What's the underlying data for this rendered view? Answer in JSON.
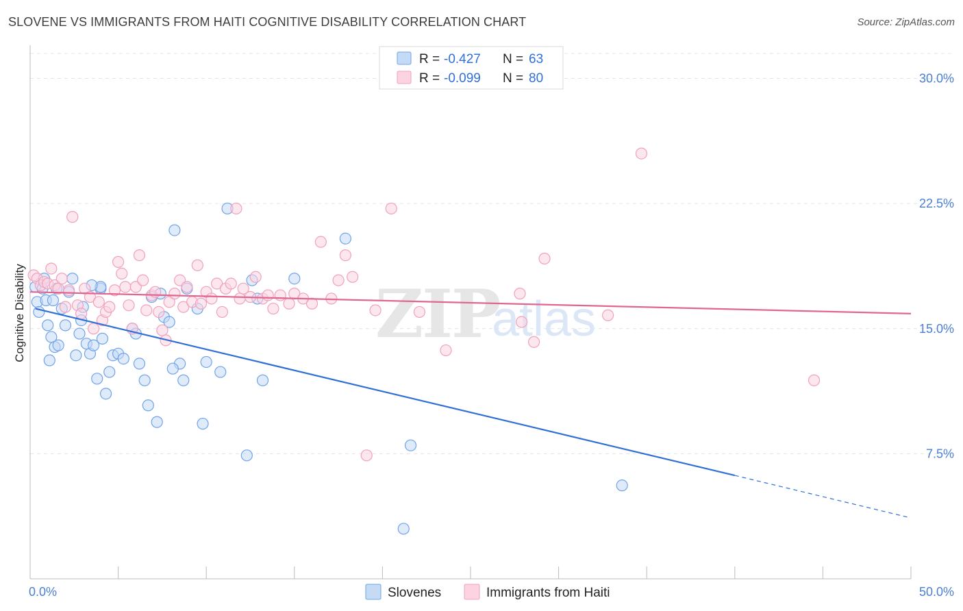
{
  "chart_data": {
    "type": "scatter",
    "title": "SLOVENE VS IMMIGRANTS FROM HAITI COGNITIVE DISABILITY CORRELATION CHART",
    "source": "Source: ZipAtlas.com",
    "ylabel": "Cognitive Disability",
    "xlim": [
      0,
      50
    ],
    "ylim": [
      0,
      31.5
    ],
    "x_tick_labels": [
      "0.0%",
      "50.0%"
    ],
    "y_ticks": [
      7.5,
      15.0,
      22.5,
      30.0
    ],
    "y_tick_labels": [
      "7.5%",
      "15.0%",
      "22.5%",
      "30.0%"
    ],
    "watermark": {
      "zip": "ZIP",
      "atlas": "atlas"
    },
    "legend": [
      {
        "r_label": "R =",
        "r_value": "-0.427",
        "n_label": "N =",
        "n_value": "63"
      },
      {
        "r_label": "R =",
        "r_value": "-0.099",
        "n_label": "N =",
        "n_value": "80"
      }
    ],
    "series": [
      {
        "name": "Slovenes",
        "color": "#6fa3e8",
        "fill": "#c5daf5",
        "line_color": "#2f6fd6",
        "trend": {
          "x_start": 0.3,
          "y_start": 16.2,
          "x_solid_end": 40.0,
          "y_solid_end": 6.2,
          "x_dash_end": 49.8,
          "y_dash_end": 3.7
        },
        "points": [
          [
            0.3,
            17.5
          ],
          [
            0.4,
            16.6
          ],
          [
            0.5,
            16.0
          ],
          [
            0.7,
            17.4
          ],
          [
            0.8,
            18.0
          ],
          [
            0.9,
            16.7
          ],
          [
            1.0,
            15.2
          ],
          [
            1.1,
            13.1
          ],
          [
            1.2,
            14.5
          ],
          [
            1.3,
            16.7
          ],
          [
            1.4,
            13.9
          ],
          [
            1.6,
            14.0
          ],
          [
            1.8,
            16.2
          ],
          [
            2.0,
            15.2
          ],
          [
            2.2,
            17.2
          ],
          [
            2.4,
            18.0
          ],
          [
            2.6,
            13.4
          ],
          [
            2.8,
            14.7
          ],
          [
            3.0,
            16.3
          ],
          [
            3.2,
            14.1
          ],
          [
            3.4,
            13.5
          ],
          [
            3.6,
            14.0
          ],
          [
            3.8,
            12.0
          ],
          [
            4.0,
            17.4
          ],
          [
            4.1,
            14.4
          ],
          [
            4.3,
            11.1
          ],
          [
            4.5,
            12.4
          ],
          [
            4.7,
            13.4
          ],
          [
            5.0,
            13.5
          ],
          [
            5.3,
            13.2
          ],
          [
            5.8,
            15.0
          ],
          [
            6.0,
            14.7
          ],
          [
            6.2,
            12.9
          ],
          [
            6.5,
            11.9
          ],
          [
            6.7,
            10.4
          ],
          [
            6.9,
            16.9
          ],
          [
            7.2,
            9.4
          ],
          [
            7.4,
            17.1
          ],
          [
            7.6,
            15.7
          ],
          [
            7.9,
            15.4
          ],
          [
            8.2,
            20.9
          ],
          [
            8.5,
            12.9
          ],
          [
            8.7,
            11.9
          ],
          [
            8.1,
            12.6
          ],
          [
            8.9,
            17.4
          ],
          [
            9.5,
            16.2
          ],
          [
            9.8,
            9.3
          ],
          [
            10.0,
            13.0
          ],
          [
            10.8,
            12.4
          ],
          [
            11.2,
            22.2
          ],
          [
            12.3,
            7.4
          ],
          [
            12.6,
            17.9
          ],
          [
            12.9,
            16.8
          ],
          [
            13.2,
            11.9
          ],
          [
            15.0,
            18.0
          ],
          [
            17.9,
            20.4
          ],
          [
            21.2,
            3.0
          ],
          [
            21.6,
            8.0
          ],
          [
            33.6,
            5.6
          ],
          [
            4.0,
            17.5
          ],
          [
            1.5,
            17.4
          ],
          [
            2.9,
            15.5
          ],
          [
            3.5,
            17.6
          ]
        ]
      },
      {
        "name": "Immigrants from Haiti",
        "color": "#f0a0bc",
        "fill": "#fbd3e1",
        "line_color": "#e0668f",
        "trend": {
          "x_start": 0.0,
          "y_start": 17.2,
          "x_end": 50.0,
          "y_end": 15.9
        },
        "points": [
          [
            0.2,
            18.2
          ],
          [
            0.4,
            18.0
          ],
          [
            0.6,
            17.6
          ],
          [
            0.8,
            17.8
          ],
          [
            1.0,
            17.7
          ],
          [
            1.2,
            18.6
          ],
          [
            1.4,
            17.6
          ],
          [
            1.6,
            17.4
          ],
          [
            1.8,
            18.0
          ],
          [
            2.0,
            16.3
          ],
          [
            2.2,
            17.3
          ],
          [
            2.4,
            21.7
          ],
          [
            2.7,
            16.4
          ],
          [
            2.9,
            15.9
          ],
          [
            3.1,
            17.4
          ],
          [
            3.4,
            16.9
          ],
          [
            3.6,
            15.0
          ],
          [
            3.9,
            16.6
          ],
          [
            4.1,
            15.5
          ],
          [
            4.3,
            16.0
          ],
          [
            4.5,
            16.3
          ],
          [
            4.8,
            17.3
          ],
          [
            5.0,
            19.0
          ],
          [
            5.2,
            18.3
          ],
          [
            5.4,
            17.5
          ],
          [
            5.6,
            16.4
          ],
          [
            5.8,
            15.0
          ],
          [
            6.0,
            17.5
          ],
          [
            6.2,
            19.4
          ],
          [
            6.4,
            17.9
          ],
          [
            6.6,
            16.1
          ],
          [
            6.9,
            17.0
          ],
          [
            7.1,
            17.2
          ],
          [
            7.3,
            16.0
          ],
          [
            7.5,
            14.9
          ],
          [
            7.7,
            14.3
          ],
          [
            7.9,
            16.6
          ],
          [
            8.2,
            17.1
          ],
          [
            8.5,
            17.9
          ],
          [
            8.7,
            16.3
          ],
          [
            8.9,
            17.5
          ],
          [
            9.2,
            16.6
          ],
          [
            9.5,
            18.8
          ],
          [
            9.7,
            16.5
          ],
          [
            10.0,
            17.2
          ],
          [
            10.3,
            16.8
          ],
          [
            10.6,
            17.7
          ],
          [
            10.9,
            16.0
          ],
          [
            11.1,
            17.4
          ],
          [
            11.4,
            17.7
          ],
          [
            11.7,
            22.2
          ],
          [
            11.9,
            16.8
          ],
          [
            12.1,
            17.4
          ],
          [
            12.5,
            16.9
          ],
          [
            12.8,
            18.1
          ],
          [
            13.2,
            16.8
          ],
          [
            13.5,
            17.0
          ],
          [
            13.8,
            16.2
          ],
          [
            14.2,
            17.0
          ],
          [
            14.7,
            16.5
          ],
          [
            15.0,
            17.1
          ],
          [
            15.5,
            16.8
          ],
          [
            16.0,
            16.5
          ],
          [
            16.5,
            20.2
          ],
          [
            17.1,
            16.8
          ],
          [
            17.5,
            17.9
          ],
          [
            17.9,
            19.4
          ],
          [
            18.3,
            18.1
          ],
          [
            19.1,
            7.4
          ],
          [
            19.6,
            16.1
          ],
          [
            20.5,
            22.2
          ],
          [
            22.1,
            16.0
          ],
          [
            23.6,
            13.7
          ],
          [
            27.8,
            17.1
          ],
          [
            27.9,
            15.4
          ],
          [
            28.6,
            14.2
          ],
          [
            29.2,
            19.2
          ],
          [
            32.8,
            15.8
          ],
          [
            34.7,
            25.5
          ],
          [
            44.5,
            11.9
          ]
        ]
      }
    ]
  }
}
